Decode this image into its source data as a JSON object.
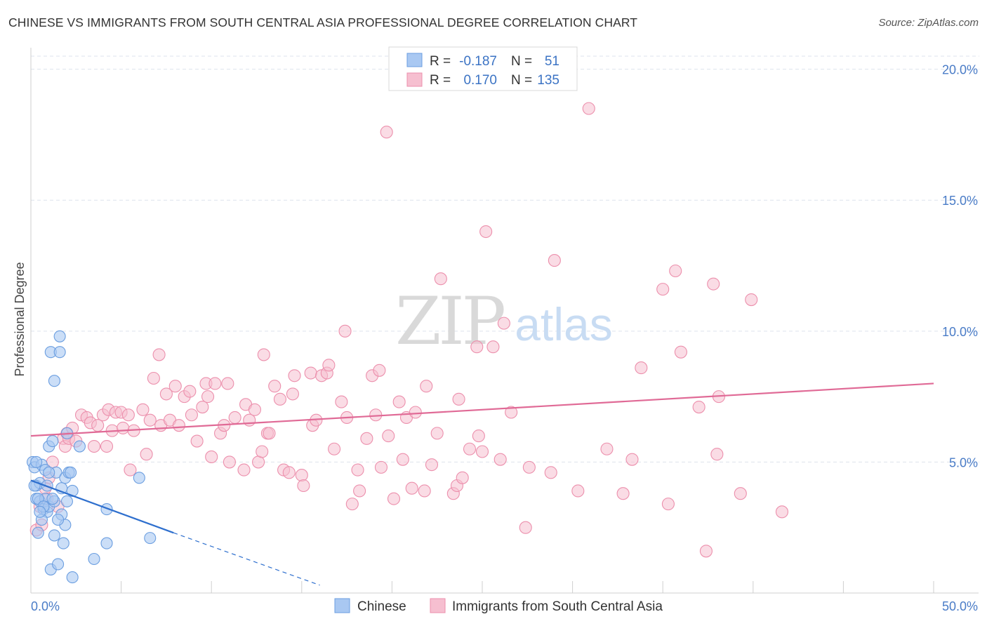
{
  "header": {
    "title": "CHINESE VS IMMIGRANTS FROM SOUTH CENTRAL ASIA PROFESSIONAL DEGREE CORRELATION CHART",
    "source": "Source: ZipAtlas.com"
  },
  "watermark": {
    "zip": "ZIP",
    "atlas": "atlas"
  },
  "colors": {
    "blue_fill": "#a9c8f2",
    "blue_stroke": "#6b9ee0",
    "blue_line": "#2e6fce",
    "pink_fill": "#f6bfd0",
    "pink_stroke": "#ec8fac",
    "pink_line": "#e06a96",
    "grid": "#dde3ec",
    "tick_label": "#4a7cc7"
  },
  "legend": {
    "rows": [
      {
        "r_label": "R =",
        "r_value": "-0.187",
        "n_label": "N =",
        "n_value": "51",
        "color": "#a9c8f2"
      },
      {
        "r_label": "R =",
        "r_value": "0.170",
        "n_label": "N =",
        "n_value": "135",
        "color": "#f6bfd0"
      }
    ]
  },
  "chart_data": {
    "type": "scatter",
    "title": "CHINESE VS IMMIGRANTS FROM SOUTH CENTRAL ASIA PROFESSIONAL DEGREE CORRELATION CHART",
    "xlabel": "",
    "ylabel": "Professional Degree",
    "xlim": [
      0,
      50
    ],
    "ylim": [
      0,
      20.5
    ],
    "x_tick_labels": [
      "0.0%",
      "50.0%"
    ],
    "y_ticks": [
      5,
      10,
      15,
      20
    ],
    "y_tick_labels": [
      "5.0%",
      "10.0%",
      "15.0%",
      "20.0%"
    ],
    "series": [
      {
        "name": "Chinese",
        "color": "#a9c8f2",
        "r": -0.187,
        "n": 51,
        "trend": {
          "x0": 0,
          "y0": 4.3,
          "x1": 7.9,
          "y1": 2.3,
          "dash_to_x": 16,
          "dash_to_y": 0.3
        },
        "points": [
          [
            0.1,
            5.0
          ],
          [
            0.2,
            4.8
          ],
          [
            0.3,
            4.1
          ],
          [
            0.3,
            3.6
          ],
          [
            0.4,
            2.3
          ],
          [
            0.5,
            3.5
          ],
          [
            0.5,
            4.2
          ],
          [
            0.6,
            4.9
          ],
          [
            0.7,
            3.2
          ],
          [
            0.8,
            3.6
          ],
          [
            0.8,
            4.7
          ],
          [
            0.9,
            3.1
          ],
          [
            1.0,
            5.6
          ],
          [
            1.0,
            3.3
          ],
          [
            1.1,
            0.9
          ],
          [
            1.1,
            9.2
          ],
          [
            1.2,
            5.8
          ],
          [
            1.3,
            2.2
          ],
          [
            1.3,
            8.1
          ],
          [
            1.3,
            3.5
          ],
          [
            1.4,
            4.6
          ],
          [
            1.5,
            1.1
          ],
          [
            1.6,
            9.8
          ],
          [
            1.6,
            9.2
          ],
          [
            1.7,
            4.0
          ],
          [
            1.7,
            3.0
          ],
          [
            1.8,
            1.9
          ],
          [
            1.9,
            4.4
          ],
          [
            1.9,
            2.6
          ],
          [
            2.0,
            3.5
          ],
          [
            2.0,
            6.1
          ],
          [
            2.1,
            4.6
          ],
          [
            2.2,
            4.6
          ],
          [
            2.3,
            0.6
          ],
          [
            2.3,
            3.9
          ],
          [
            2.7,
            5.6
          ],
          [
            3.5,
            1.3
          ],
          [
            4.2,
            1.9
          ],
          [
            4.2,
            3.2
          ],
          [
            6.0,
            4.4
          ],
          [
            6.6,
            2.1
          ],
          [
            0.2,
            4.1
          ],
          [
            0.4,
            3.6
          ],
          [
            0.6,
            2.8
          ],
          [
            0.7,
            3.3
          ],
          [
            0.9,
            4.1
          ],
          [
            1.2,
            3.6
          ],
          [
            1.5,
            2.8
          ],
          [
            0.3,
            5.0
          ],
          [
            1.0,
            4.6
          ],
          [
            0.5,
            3.1
          ]
        ]
      },
      {
        "name": "Immigrants from South Central Asia",
        "color": "#f6bfd0",
        "r": 0.17,
        "n": 135,
        "trend": {
          "x0": 0,
          "y0": 6.0,
          "x1": 50,
          "y1": 8.0
        },
        "points": [
          [
            0.3,
            2.4
          ],
          [
            0.5,
            3.3
          ],
          [
            0.6,
            2.6
          ],
          [
            0.8,
            4.0
          ],
          [
            0.9,
            3.6
          ],
          [
            1.0,
            4.4
          ],
          [
            1.2,
            5.0
          ],
          [
            1.5,
            3.3
          ],
          [
            1.8,
            5.9
          ],
          [
            1.9,
            5.6
          ],
          [
            2.0,
            6.1
          ],
          [
            2.1,
            5.9
          ],
          [
            2.3,
            6.3
          ],
          [
            2.5,
            5.8
          ],
          [
            2.8,
            6.8
          ],
          [
            3.1,
            6.7
          ],
          [
            3.3,
            6.5
          ],
          [
            3.5,
            5.6
          ],
          [
            3.7,
            6.4
          ],
          [
            4.0,
            6.8
          ],
          [
            4.2,
            5.6
          ],
          [
            4.3,
            7.0
          ],
          [
            4.5,
            6.2
          ],
          [
            4.7,
            6.9
          ],
          [
            5.0,
            6.9
          ],
          [
            5.1,
            6.3
          ],
          [
            5.4,
            6.8
          ],
          [
            5.5,
            4.7
          ],
          [
            5.7,
            6.2
          ],
          [
            6.2,
            7.0
          ],
          [
            6.4,
            5.3
          ],
          [
            6.6,
            6.6
          ],
          [
            6.8,
            8.2
          ],
          [
            7.1,
            9.1
          ],
          [
            7.2,
            6.4
          ],
          [
            7.5,
            7.6
          ],
          [
            7.7,
            6.6
          ],
          [
            8.0,
            7.9
          ],
          [
            8.2,
            6.4
          ],
          [
            8.5,
            7.5
          ],
          [
            8.8,
            7.7
          ],
          [
            8.9,
            6.8
          ],
          [
            9.2,
            5.8
          ],
          [
            9.5,
            7.1
          ],
          [
            9.7,
            8.0
          ],
          [
            9.8,
            7.5
          ],
          [
            10.0,
            5.2
          ],
          [
            10.2,
            8.0
          ],
          [
            10.5,
            6.1
          ],
          [
            10.7,
            6.4
          ],
          [
            10.9,
            8.0
          ],
          [
            11.0,
            5.0
          ],
          [
            11.3,
            6.7
          ],
          [
            11.8,
            4.7
          ],
          [
            11.9,
            7.2
          ],
          [
            12.1,
            6.6
          ],
          [
            12.4,
            7.0
          ],
          [
            12.6,
            5.0
          ],
          [
            12.8,
            5.4
          ],
          [
            12.9,
            9.1
          ],
          [
            13.1,
            6.1
          ],
          [
            13.2,
            6.1
          ],
          [
            13.5,
            7.9
          ],
          [
            13.8,
            7.4
          ],
          [
            14.0,
            4.7
          ],
          [
            14.3,
            4.6
          ],
          [
            14.5,
            7.6
          ],
          [
            14.6,
            8.3
          ],
          [
            15.0,
            4.5
          ],
          [
            15.1,
            4.1
          ],
          [
            15.5,
            8.4
          ],
          [
            15.6,
            6.4
          ],
          [
            15.8,
            6.6
          ],
          [
            16.1,
            8.3
          ],
          [
            16.4,
            8.4
          ],
          [
            16.5,
            8.7
          ],
          [
            16.8,
            5.5
          ],
          [
            17.2,
            7.3
          ],
          [
            17.4,
            10.0
          ],
          [
            17.5,
            6.7
          ],
          [
            17.8,
            3.4
          ],
          [
            18.1,
            4.7
          ],
          [
            18.2,
            3.9
          ],
          [
            18.6,
            5.9
          ],
          [
            18.9,
            8.3
          ],
          [
            19.1,
            6.8
          ],
          [
            19.3,
            8.5
          ],
          [
            19.4,
            4.8
          ],
          [
            19.7,
            17.6
          ],
          [
            19.8,
            6.0
          ],
          [
            20.1,
            3.6
          ],
          [
            20.4,
            7.3
          ],
          [
            20.6,
            5.1
          ],
          [
            20.8,
            6.7
          ],
          [
            21.1,
            4.0
          ],
          [
            21.3,
            6.9
          ],
          [
            21.8,
            3.9
          ],
          [
            21.9,
            7.9
          ],
          [
            22.2,
            4.9
          ],
          [
            22.5,
            6.1
          ],
          [
            22.7,
            12.0
          ],
          [
            23.4,
            3.8
          ],
          [
            23.6,
            4.1
          ],
          [
            23.7,
            7.4
          ],
          [
            23.9,
            4.4
          ],
          [
            24.3,
            5.5
          ],
          [
            24.7,
            9.4
          ],
          [
            24.8,
            6.0
          ],
          [
            25.0,
            5.4
          ],
          [
            25.2,
            13.8
          ],
          [
            25.6,
            9.4
          ],
          [
            26.0,
            5.1
          ],
          [
            26.2,
            10.3
          ],
          [
            26.6,
            6.9
          ],
          [
            27.4,
            2.5
          ],
          [
            27.6,
            4.8
          ],
          [
            28.8,
            4.6
          ],
          [
            29.0,
            12.7
          ],
          [
            30.3,
            3.9
          ],
          [
            30.9,
            18.5
          ],
          [
            31.9,
            5.5
          ],
          [
            32.8,
            3.8
          ],
          [
            33.3,
            5.1
          ],
          [
            33.8,
            8.6
          ],
          [
            35.0,
            11.6
          ],
          [
            35.3,
            3.4
          ],
          [
            35.7,
            12.3
          ],
          [
            36.0,
            9.2
          ],
          [
            37.0,
            7.1
          ],
          [
            37.4,
            1.6
          ],
          [
            37.8,
            11.8
          ],
          [
            38.0,
            5.3
          ],
          [
            38.1,
            7.5
          ],
          [
            39.3,
            3.8
          ],
          [
            39.9,
            11.2
          ],
          [
            41.6,
            3.1
          ]
        ]
      }
    ]
  },
  "bottom_legend": {
    "items": [
      {
        "label": "Chinese",
        "color": "#a9c8f2"
      },
      {
        "label": "Immigrants from South Central Asia",
        "color": "#f6bfd0"
      }
    ]
  }
}
